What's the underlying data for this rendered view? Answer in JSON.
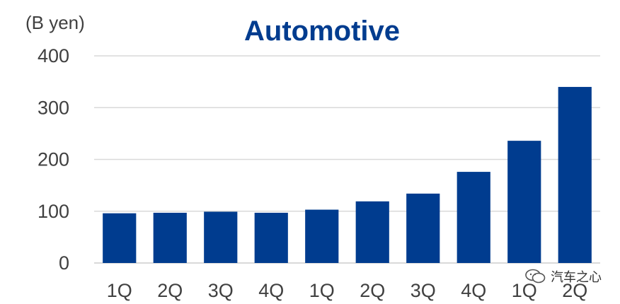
{
  "chart_data": {
    "type": "bar",
    "title": "Automotive",
    "unit_label": "(B yen)",
    "ylabel": "",
    "xlabel": "",
    "ylim": [
      0,
      400
    ],
    "yticks": [
      0,
      100,
      200,
      300,
      400
    ],
    "categories": [
      "1Q",
      "2Q",
      "3Q",
      "4Q",
      "1Q",
      "2Q",
      "3Q",
      "4Q",
      "1Q",
      "2Q"
    ],
    "values": [
      96,
      97,
      99,
      97,
      103,
      119,
      134,
      176,
      236,
      340
    ],
    "grid": true,
    "colors": {
      "bar": "#003C8F",
      "title": "#003C8F",
      "grid": "#D9D9D9",
      "axis": "#D9D9D9",
      "text": "#404040"
    }
  },
  "watermark": {
    "text": "汽车之心",
    "icon": "wechat-icon"
  }
}
